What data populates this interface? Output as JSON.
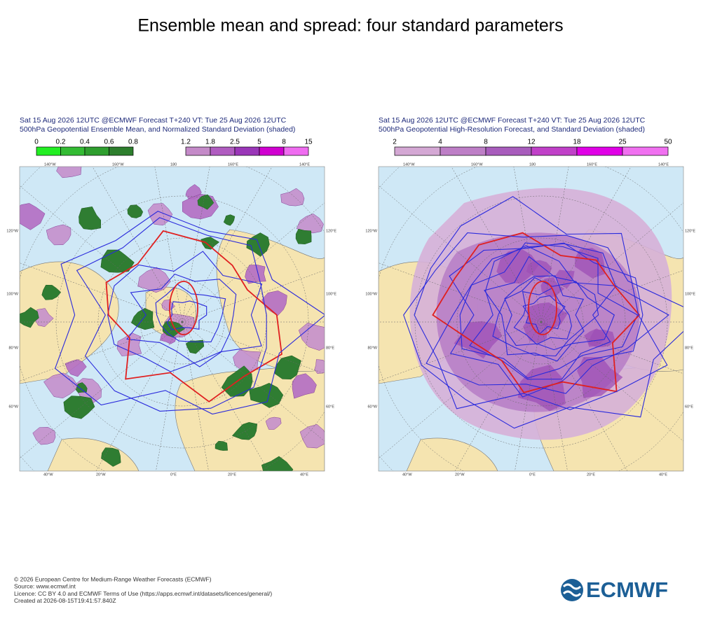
{
  "title": "Ensemble mean and spread: four standard parameters",
  "panels": [
    {
      "header": [
        "Sat 15 Aug 2026 12UTC @ECMWF Forecast T+240 VT: Tue 25 Aug 2026 12UTC",
        "500hPa Geopotential Ensemble Mean, and Normalized Standard Deviation (shaded)"
      ],
      "colorbars": [
        {
          "labels": [
            0,
            0.2,
            0.4,
            0.6,
            0.8
          ],
          "colors": [
            "#22ee22",
            "#33bb33",
            "#2e9e2e",
            "#2d7e2d"
          ]
        },
        {
          "labels": [
            1.2,
            1.8,
            2.5,
            5,
            8,
            15
          ],
          "colors": [
            "#c48ac8",
            "#b05cc0",
            "#9a36b8",
            "#d000d0",
            "#ef6cf0"
          ]
        }
      ]
    },
    {
      "header": [
        "Sat 15 Aug 2026 12UTC @ECMWF Forecast T+240 VT: Tue 25 Aug 2026 12UTC",
        "500hPa Geopotential High-Resolution Forecast, and Standard Deviation (shaded)"
      ],
      "colorbars": [
        {
          "labels": [
            2,
            4,
            8,
            12,
            18,
            25,
            50
          ],
          "colors": [
            "#d4a8d4",
            "#bd7ec6",
            "#a85cbc",
            "#c040c8",
            "#e000e6",
            "#f070f0"
          ]
        }
      ]
    }
  ],
  "map_labels": {
    "top": [
      "140°W",
      "160°W",
      "180",
      "160°E",
      "140°E"
    ],
    "left": [
      "120°W",
      "100°W",
      "80°W",
      "60°W"
    ],
    "right": [
      "120°E",
      "100°E",
      "80°E",
      "60°E"
    ],
    "bottom": [
      "40°W",
      "20°W",
      "0°E",
      "20°E",
      "40°E"
    ]
  },
  "footer": [
    "© 2026 European Centre for Medium-Range Weather Forecasts (ECMWF)",
    "Source: www.ecmwf.int",
    "Licence: CC BY 4.0 and ECMWF Terms of Use (https://apps.ecmwf.int/datasets/licences/general/)",
    "Created at 2026-08-15T19:41:57.840Z"
  ],
  "logo": "ECMWF"
}
